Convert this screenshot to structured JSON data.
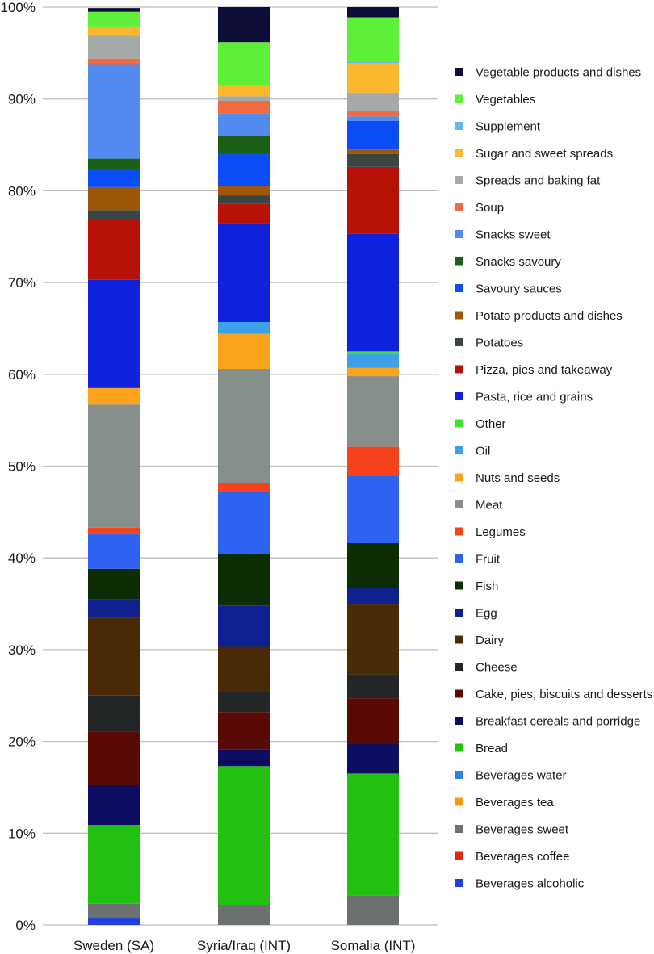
{
  "chart_data": {
    "type": "bar",
    "stacked": true,
    "title": "",
    "xlabel": "",
    "ylabel": "",
    "ylim": [
      0,
      100
    ],
    "yticks": [
      0,
      10,
      20,
      30,
      40,
      50,
      60,
      70,
      80,
      90,
      100
    ],
    "ytick_format": "{v}%",
    "grid": true,
    "legend_position": "right",
    "categories": [
      "Sweden (SA)",
      "Syria/Iraq (INT)",
      "Somalia (INT)"
    ],
    "series": [
      {
        "name": "Beverages alcoholic",
        "color": "#1f3fe0",
        "values": [
          0.7,
          0.0,
          0.0
        ]
      },
      {
        "name": "Beverages coffee",
        "color": "#e8260a",
        "values": [
          0.0,
          0.0,
          0.0
        ]
      },
      {
        "name": "Beverages sweet",
        "color": "#6b7070",
        "values": [
          1.6,
          2.2,
          3.2
        ]
      },
      {
        "name": "Beverages tea",
        "color": "#f59a10",
        "values": [
          0.0,
          0.0,
          0.0
        ]
      },
      {
        "name": "Beverages water",
        "color": "#2f80e6",
        "values": [
          0.0,
          0.0,
          0.0
        ]
      },
      {
        "name": "Bread",
        "color": "#22c010",
        "values": [
          8.6,
          15.1,
          13.3
        ]
      },
      {
        "name": "Breakfast cereals and porridge",
        "color": "#0c0c60",
        "values": [
          4.4,
          1.8,
          3.2
        ]
      },
      {
        "name": "Cake, pies, biscuits and desserts",
        "color": "#5a0a04",
        "values": [
          5.8,
          4.1,
          5.0
        ]
      },
      {
        "name": "Cheese",
        "color": "#222626",
        "values": [
          3.9,
          2.3,
          2.6
        ]
      },
      {
        "name": "Dairy",
        "color": "#4a2a06",
        "values": [
          8.5,
          4.8,
          7.7
        ]
      },
      {
        "name": "Egg",
        "color": "#10208e",
        "values": [
          2.0,
          4.5,
          1.7
        ]
      },
      {
        "name": "Fish",
        "color": "#0c2c04",
        "values": [
          3.3,
          5.6,
          4.9
        ]
      },
      {
        "name": "Fruit",
        "color": "#2e62f0",
        "values": [
          3.8,
          6.9,
          7.3
        ]
      },
      {
        "name": "Legumes",
        "color": "#f5421c",
        "values": [
          0.7,
          0.9,
          3.2
        ]
      },
      {
        "name": "Meat",
        "color": "#868f8b",
        "values": [
          13.4,
          12.4,
          7.7
        ]
      },
      {
        "name": "Nuts and seeds",
        "color": "#fba31c",
        "values": [
          1.8,
          3.8,
          0.9
        ]
      },
      {
        "name": "Oil",
        "color": "#3ea0ea",
        "values": [
          0.0,
          1.3,
          1.5
        ]
      },
      {
        "name": "Other",
        "color": "#3ee628",
        "values": [
          0.0,
          0.0,
          0.3
        ]
      },
      {
        "name": "Pasta, rice and grains",
        "color": "#1022dc",
        "values": [
          11.8,
          10.8,
          12.8
        ]
      },
      {
        "name": "Pizza, pies and takeaway",
        "color": "#b81208",
        "values": [
          6.5,
          2.1,
          7.3
        ]
      },
      {
        "name": "Potatoes",
        "color": "#3a4442",
        "values": [
          1.1,
          0.9,
          1.4
        ]
      },
      {
        "name": "Potato products and dishes",
        "color": "#9c5808",
        "values": [
          2.5,
          1.0,
          0.5
        ]
      },
      {
        "name": "Savoury sauces",
        "color": "#0a4df5",
        "values": [
          2.0,
          3.6,
          3.1
        ]
      },
      {
        "name": "Snacks savoury",
        "color": "#1c6016",
        "values": [
          1.1,
          1.9,
          0.0
        ]
      },
      {
        "name": "Snacks sweet",
        "color": "#528af0",
        "values": [
          10.3,
          2.4,
          0.5
        ]
      },
      {
        "name": "Soup",
        "color": "#f26a40",
        "values": [
          0.6,
          1.4,
          0.6
        ]
      },
      {
        "name": "Spreads and baking fat",
        "color": "#a3aaa8",
        "values": [
          2.6,
          0.5,
          2.0
        ]
      },
      {
        "name": "Sugar and sweet spreads",
        "color": "#fbb82c",
        "values": [
          0.9,
          1.2,
          3.2
        ]
      },
      {
        "name": "Supplement",
        "color": "#66b4f2",
        "values": [
          0.0,
          0.0,
          0.2
        ]
      },
      {
        "name": "Vegetables",
        "color": "#5ef038",
        "values": [
          1.6,
          4.7,
          4.8
        ]
      },
      {
        "name": "Vegetable products and dishes",
        "color": "#0c0c36",
        "values": [
          0.4,
          3.8,
          1.1
        ]
      }
    ]
  }
}
